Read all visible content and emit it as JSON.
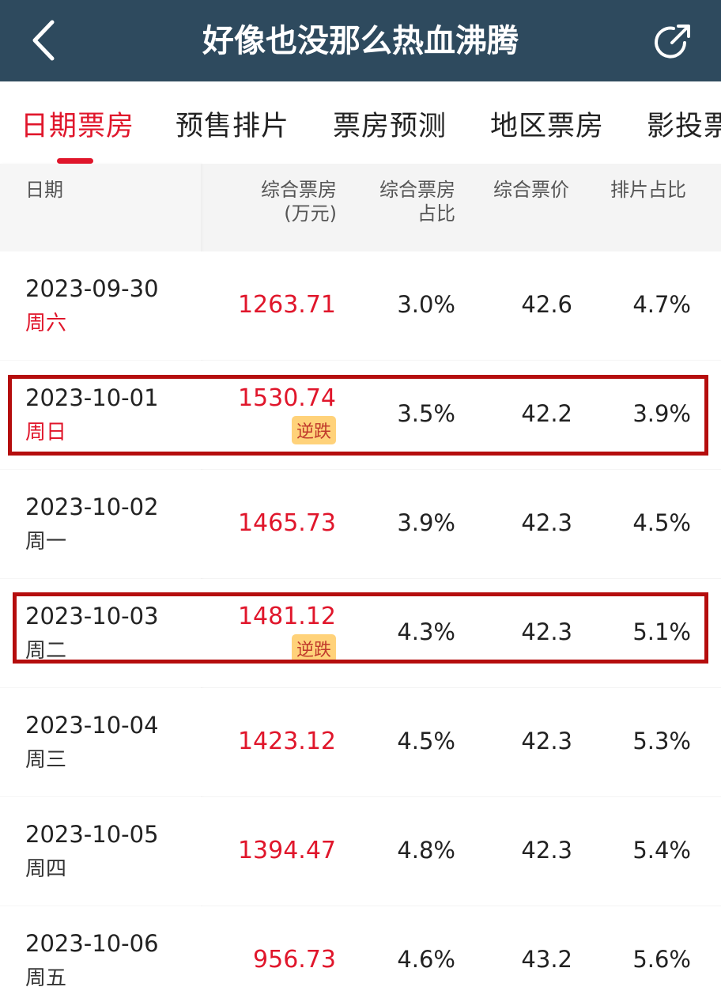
{
  "header": {
    "title": "好像也没那么热血沸腾",
    "back_icon": "chevron-left-icon",
    "share_icon": "share-arrow-icon",
    "background": "#2e4a5e"
  },
  "tabs": [
    {
      "label": "日期票房",
      "active": true
    },
    {
      "label": "预售排片",
      "active": false
    },
    {
      "label": "票房预测",
      "active": false
    },
    {
      "label": "地区票房",
      "active": false
    },
    {
      "label": "影投票",
      "active": false
    }
  ],
  "accent_color": "#e0162b",
  "table": {
    "columns": {
      "date": "日期",
      "box_office_line1": "综合票房",
      "box_office_line2": "(万元)",
      "share_line1": "综合票房",
      "share_line2": "占比",
      "avg_price": "综合票价",
      "screen_ratio": "排片占比"
    },
    "rows": [
      {
        "date": "2023-09-30",
        "weekday": "周六",
        "weekend": true,
        "box_office": "1263.71",
        "tag": "",
        "share": "3.0%",
        "avg_price": "42.6",
        "screen_ratio": "4.7%",
        "highlighted": false
      },
      {
        "date": "2023-10-01",
        "weekday": "周日",
        "weekend": true,
        "box_office": "1530.74",
        "tag": "逆跌",
        "share": "3.5%",
        "avg_price": "42.2",
        "screen_ratio": "3.9%",
        "highlighted": true
      },
      {
        "date": "2023-10-02",
        "weekday": "周一",
        "weekend": false,
        "box_office": "1465.73",
        "tag": "",
        "share": "3.9%",
        "avg_price": "42.3",
        "screen_ratio": "4.5%",
        "highlighted": false
      },
      {
        "date": "2023-10-03",
        "weekday": "周二",
        "weekend": false,
        "box_office": "1481.12",
        "tag": "逆跌",
        "share": "4.3%",
        "avg_price": "42.3",
        "screen_ratio": "5.1%",
        "highlighted": true
      },
      {
        "date": "2023-10-04",
        "weekday": "周三",
        "weekend": false,
        "box_office": "1423.12",
        "tag": "",
        "share": "4.5%",
        "avg_price": "42.3",
        "screen_ratio": "5.3%",
        "highlighted": false
      },
      {
        "date": "2023-10-05",
        "weekday": "周四",
        "weekend": false,
        "box_office": "1394.47",
        "tag": "",
        "share": "4.8%",
        "avg_price": "42.3",
        "screen_ratio": "5.4%",
        "highlighted": false
      },
      {
        "date": "2023-10-06",
        "weekday": "周五",
        "weekend": false,
        "box_office": "956.73",
        "tag": "",
        "share": "4.6%",
        "avg_price": "43.2",
        "screen_ratio": "5.6%",
        "highlighted": false
      }
    ]
  }
}
